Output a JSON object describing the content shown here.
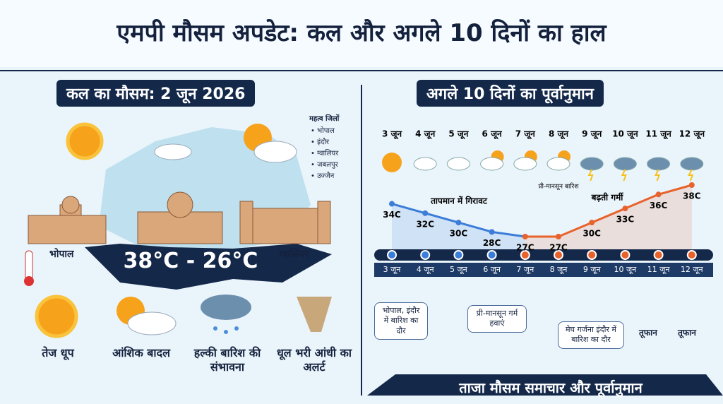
{
  "header": {
    "title": "एमपी मौसम अपडेट: कल और अगले 10 दिनों का हाल"
  },
  "left_panel": {
    "heading": "कल का मौसम: 2 जून 2026",
    "districts": {
      "title": "महत्व जिलों",
      "items": [
        "भोपाल",
        "इंदौर",
        "ग्वालियर",
        "जबलपुर",
        "उज्जैन"
      ]
    },
    "city_labels": [
      "भोपाल",
      "ग्वालियर"
    ],
    "temperature_range": "38°C - 26°C",
    "conditions": [
      "तेज धूप",
      "आंशिक बादल",
      "हल्की बारिश की संभावना",
      "धूल भरी आंधी का अलर्ट"
    ]
  },
  "chart_data": {
    "type": "line",
    "title": "अगले 10 दिनों का पूर्वानुमान",
    "categories": [
      "3 जून",
      "4 जून",
      "5 जून",
      "6 जून",
      "7 जून",
      "8 जून",
      "9 जून",
      "10 जून",
      "11 जून",
      "12 जून"
    ],
    "series": [
      {
        "values": [
          34,
          32,
          30,
          28,
          27,
          27,
          30,
          33,
          36,
          38
        ],
        "value_labels": [
          "34C",
          "32C",
          "30C",
          "28C",
          "27C",
          "27C",
          "30C",
          "33C",
          "36C",
          "38C"
        ],
        "color": "#3b7dd8",
        "color_rise": "#e8622c"
      }
    ],
    "annotations": [
      "तापमान में गिरावट",
      "प्री-मानसून बारिश",
      "बढ़ती गर्मी"
    ]
  },
  "callouts": [
    "भोपाल, इंदौर में बारिश का दौर",
    "प्री-मानसून गर्म हवाएं",
    "मेघ गर्जना इंदौर में बारिश का दौर",
    "तूफान",
    "तूफान"
  ],
  "footer": "ताजा मौसम समाचार और पूर्वानुमान"
}
